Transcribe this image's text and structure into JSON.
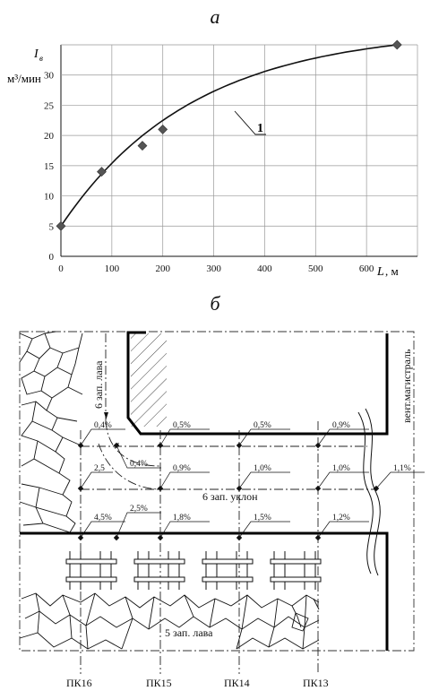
{
  "panel_a": {
    "letter": "а",
    "y_symbol": "I",
    "y_symbol_sub": "в",
    "y_units": "м³/мин",
    "x_symbol": "L",
    "x_units": ", м",
    "curve_label": "1"
  },
  "chart_data": {
    "type": "scatter",
    "title": "",
    "xlabel": "L, м",
    "ylabel": "Iв, м³/мин",
    "xlim": [
      0,
      700
    ],
    "ylim": [
      0,
      35
    ],
    "x_ticks": [
      "0",
      "100",
      "200",
      "300",
      "400",
      "500",
      "600"
    ],
    "y_ticks": [
      "0",
      "5",
      "10",
      "15",
      "20",
      "25",
      "30"
    ],
    "grid": true,
    "series": [
      {
        "name": "",
        "points": [
          {
            "x": 0,
            "y": 5
          },
          {
            "x": 80,
            "y": 14
          },
          {
            "x": 160,
            "y": 18.3
          },
          {
            "x": 200,
            "y": 21
          },
          {
            "x": 660,
            "y": 35
          }
        ]
      }
    ],
    "trend_label": "1"
  },
  "panel_b": {
    "letter": "б",
    "lava6": "6 зап. лава",
    "magistral": "вент.магистраль",
    "uklon": "6 зап. уклон",
    "lava5": "5 зап. лава",
    "pk_labels": [
      "ПК16",
      "ПК15",
      "ПК14",
      "ПК13"
    ],
    "percents": {
      "p04a": "0,4%",
      "p05a": "0,5%",
      "p05b": "0,5%",
      "p09a": "0,9%",
      "p25a": "2,5",
      "p04b": "0,4%",
      "p09b": "0,9%",
      "p10a": "1,0%",
      "p10b": "1,0%",
      "p11": "1,1%",
      "p45": "4,5%",
      "p25b": "2,5%",
      "p18": "1,8%",
      "p15": "1,5%",
      "p12": "1,2%"
    }
  }
}
